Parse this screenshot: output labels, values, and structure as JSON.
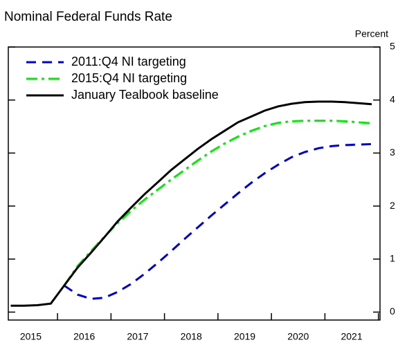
{
  "chart_data": {
    "type": "line",
    "title": "Nominal Federal Funds Rate",
    "y_axis_label": "Percent",
    "x": [
      2015.125,
      2015.375,
      2015.625,
      2015.875,
      2016.125,
      2016.375,
      2016.625,
      2016.875,
      2017.125,
      2017.375,
      2017.625,
      2017.875,
      2018.125,
      2018.375,
      2018.625,
      2018.875,
      2019.125,
      2019.375,
      2019.625,
      2019.875,
      2020.125,
      2020.375,
      2020.625,
      2020.875,
      2021.125,
      2021.375,
      2021.625,
      2021.875
    ],
    "series": [
      {
        "name": "2011:Q4 NI targeting",
        "color": "#0000dd",
        "dash": "14 9",
        "values": [
          null,
          null,
          null,
          null,
          0.5,
          0.33,
          0.25,
          0.27,
          0.38,
          0.53,
          0.72,
          0.93,
          1.15,
          1.38,
          1.6,
          1.82,
          2.03,
          2.24,
          2.44,
          2.62,
          2.78,
          2.92,
          3.02,
          3.09,
          3.13,
          3.15,
          3.16,
          3.17
        ]
      },
      {
        "name": "2015:Q4 NI targeting",
        "color": "#00ee00",
        "dash": "16 6 4 6",
        "values": [
          null,
          null,
          null,
          null,
          0.5,
          0.87,
          1.15,
          1.42,
          1.68,
          1.91,
          2.12,
          2.31,
          2.5,
          2.68,
          2.86,
          3.03,
          3.18,
          3.31,
          3.42,
          3.51,
          3.57,
          3.6,
          3.61,
          3.61,
          3.61,
          3.6,
          3.58,
          3.56
        ]
      },
      {
        "name": "January Tealbook baseline",
        "color": "#000000",
        "dash": "none",
        "values": [
          0.12,
          0.12,
          0.13,
          0.16,
          0.5,
          0.84,
          1.12,
          1.41,
          1.71,
          1.97,
          2.22,
          2.45,
          2.68,
          2.88,
          3.08,
          3.26,
          3.42,
          3.58,
          3.69,
          3.8,
          3.88,
          3.93,
          3.96,
          3.97,
          3.97,
          3.96,
          3.94,
          3.92
        ]
      }
    ],
    "xlim": [
      2015.08,
      2022.03
    ],
    "xticks": [
      {
        "value": 2015.5,
        "label": "2015"
      },
      {
        "value": 2016.5,
        "label": "2016"
      },
      {
        "value": 2017.5,
        "label": "2017"
      },
      {
        "value": 2018.5,
        "label": "2018"
      },
      {
        "value": 2019.5,
        "label": "2019"
      },
      {
        "value": 2020.5,
        "label": "2020"
      },
      {
        "value": 2021.5,
        "label": "2021"
      }
    ],
    "xminorticks": [
      2016,
      2017,
      2018,
      2019,
      2020,
      2021,
      2022
    ],
    "ylim": [
      -0.15,
      5
    ],
    "yticks": [
      0,
      1,
      2,
      3,
      4,
      5
    ],
    "legend": "upper left"
  }
}
